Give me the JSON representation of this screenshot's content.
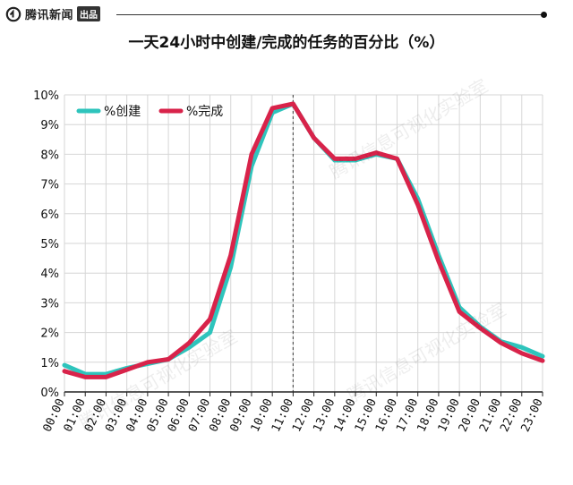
{
  "header": {
    "brand_name": "腾讯新闻",
    "brand_tag": "出品"
  },
  "watermark": "腾讯信息可视化实验室",
  "colors": {
    "created": "#2ec4bc",
    "completed": "#d8234a",
    "grid": "#d6d6d6",
    "axis": "#222222"
  },
  "chart_data": {
    "type": "line",
    "title": "一天24小时中创建/完成的任务的百分比（%）",
    "xlabel": "",
    "ylabel": "",
    "categories": [
      "00:00",
      "01:00",
      "02:00",
      "03:00",
      "04:00",
      "05:00",
      "06:00",
      "07:00",
      "08:00",
      "09:00",
      "10:00",
      "11:00",
      "12:00",
      "13:00",
      "14:00",
      "15:00",
      "16:00",
      "17:00",
      "18:00",
      "19:00",
      "20:00",
      "21:00",
      "22:00",
      "23:00"
    ],
    "series": [
      {
        "name": "%创建",
        "values": [
          0.9,
          0.6,
          0.6,
          0.8,
          0.95,
          1.1,
          1.5,
          2.0,
          4.2,
          7.6,
          9.4,
          9.7,
          8.55,
          7.8,
          7.8,
          8.0,
          7.85,
          6.5,
          4.6,
          2.85,
          2.2,
          1.7,
          1.5,
          1.2
        ]
      },
      {
        "name": "%完成",
        "values": [
          0.7,
          0.5,
          0.5,
          0.75,
          1.0,
          1.1,
          1.65,
          2.45,
          4.6,
          8.0,
          9.55,
          9.7,
          8.55,
          7.85,
          7.85,
          8.05,
          7.85,
          6.3,
          4.4,
          2.7,
          2.15,
          1.65,
          1.3,
          1.05
        ]
      }
    ],
    "ylim": [
      0,
      10
    ],
    "yticks": [
      "0%",
      "1%",
      "2%",
      "3%",
      "4%",
      "5%",
      "6%",
      "7%",
      "8%",
      "9%",
      "10%"
    ],
    "marker_category": "11:00",
    "legend_position": "top-left",
    "grid": true
  }
}
